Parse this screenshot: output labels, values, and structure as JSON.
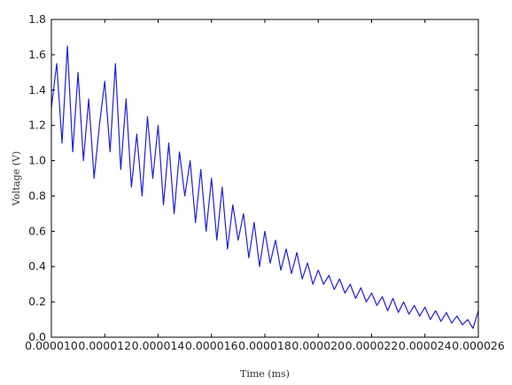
{
  "chart_data": {
    "type": "line",
    "title": "",
    "xlabel": "Time (ms)",
    "ylabel": "Voltage (V)",
    "xlim": [
      1e-05,
      2.6e-05
    ],
    "ylim": [
      0.0,
      1.8
    ],
    "x_ticks": [
      1e-05,
      1.2e-05,
      1.4e-05,
      1.6e-05,
      1.8e-05,
      2e-05,
      2.2e-05,
      2.4e-05,
      2.6e-05
    ],
    "x_tick_labels": [
      "0.000010",
      "0.000012",
      "0.000014",
      "0.000016",
      "0.000018",
      "0.000020",
      "0.000022",
      "0.000024",
      "0.000026"
    ],
    "y_ticks": [
      0.0,
      0.2,
      0.4,
      0.6,
      0.8,
      1.0,
      1.2,
      1.4,
      1.6,
      1.8
    ],
    "y_tick_labels": [
      "0.0",
      "0.2",
      "0.4",
      "0.6",
      "0.8",
      "1.0",
      "1.2",
      "1.4",
      "1.6",
      "1.8"
    ],
    "grid": false,
    "legend": "none",
    "series": [
      {
        "color": "#1f1fd6",
        "x": [
          1e-05,
          1.02e-05,
          1.04e-05,
          1.06e-05,
          1.08e-05,
          1.1e-05,
          1.12e-05,
          1.14e-05,
          1.16e-05,
          1.18e-05,
          1.2e-05,
          1.22e-05,
          1.24e-05,
          1.26e-05,
          1.28e-05,
          1.3e-05,
          1.32e-05,
          1.34e-05,
          1.36e-05,
          1.38e-05,
          1.4e-05,
          1.42e-05,
          1.44e-05,
          1.46e-05,
          1.48e-05,
          1.5e-05,
          1.52e-05,
          1.54e-05,
          1.56e-05,
          1.58e-05,
          1.6e-05,
          1.62e-05,
          1.64e-05,
          1.66e-05,
          1.68e-05,
          1.7e-05,
          1.72e-05,
          1.74e-05,
          1.76e-05,
          1.78e-05,
          1.8e-05,
          1.82e-05,
          1.84e-05,
          1.86e-05,
          1.88e-05,
          1.9e-05,
          1.92e-05,
          1.94e-05,
          1.96e-05,
          1.98e-05,
          2e-05,
          2.02e-05,
          2.04e-05,
          2.06e-05,
          2.08e-05,
          2.1e-05,
          2.12e-05,
          2.14e-05,
          2.16e-05,
          2.18e-05,
          2.2e-05,
          2.22e-05,
          2.24e-05,
          2.26e-05,
          2.28e-05,
          2.3e-05,
          2.32e-05,
          2.34e-05,
          2.36e-05,
          2.38e-05,
          2.4e-05,
          2.42e-05,
          2.44e-05,
          2.46e-05,
          2.48e-05,
          2.5e-05,
          2.52e-05,
          2.54e-05,
          2.56e-05,
          2.58e-05,
          2.6e-05
        ],
        "y": [
          1.3,
          1.55,
          1.1,
          1.65,
          1.05,
          1.5,
          1.0,
          1.35,
          0.9,
          1.2,
          1.45,
          1.05,
          1.55,
          0.95,
          1.35,
          0.85,
          1.15,
          0.8,
          1.25,
          0.9,
          1.2,
          0.75,
          1.1,
          0.7,
          1.05,
          0.8,
          1.0,
          0.65,
          0.95,
          0.6,
          0.9,
          0.55,
          0.85,
          0.5,
          0.75,
          0.55,
          0.7,
          0.45,
          0.65,
          0.4,
          0.6,
          0.42,
          0.55,
          0.38,
          0.5,
          0.36,
          0.48,
          0.33,
          0.42,
          0.3,
          0.38,
          0.3,
          0.35,
          0.27,
          0.33,
          0.25,
          0.3,
          0.22,
          0.28,
          0.2,
          0.25,
          0.18,
          0.23,
          0.15,
          0.22,
          0.14,
          0.2,
          0.13,
          0.18,
          0.12,
          0.17,
          0.1,
          0.15,
          0.09,
          0.14,
          0.08,
          0.12,
          0.07,
          0.1,
          0.05,
          0.15
        ]
      }
    ]
  }
}
